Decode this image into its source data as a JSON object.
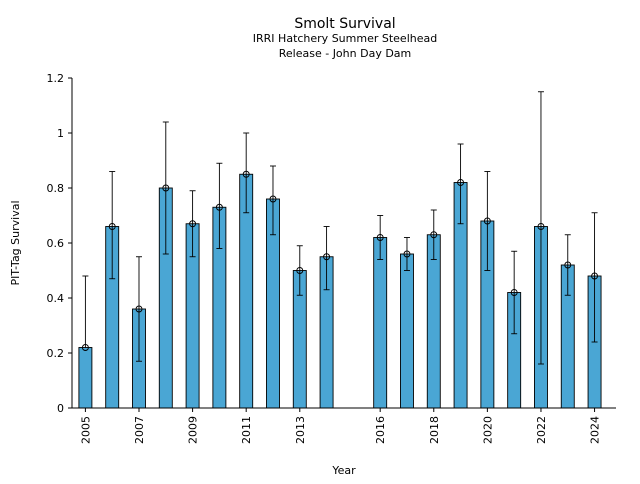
{
  "chart_data": {
    "type": "bar",
    "title": "Smolt Survival",
    "subtitle": [
      "IRRI Hatchery Summer Steelhead",
      "Release - John Day Dam"
    ],
    "xlabel": "Year",
    "ylabel": "PIT-Tag Survival",
    "ylim": [
      0,
      1.2
    ],
    "yticks": [
      "0",
      "0.2",
      "0.4",
      "0.6",
      "0.8",
      "1",
      "1.2"
    ],
    "xticks": [
      "2005",
      "2007",
      "2009",
      "2011",
      "2013",
      "2016",
      "2018",
      "2020",
      "2022",
      "2024"
    ],
    "grid": false,
    "bar_color": "#4aa6d4",
    "edge_color": "#000000",
    "x": [
      2005,
      2006,
      2007,
      2008,
      2009,
      2010,
      2011,
      2012,
      2013,
      2014,
      2016,
      2017,
      2018,
      2019,
      2020,
      2021,
      2022,
      2023,
      2024
    ],
    "values": [
      0.22,
      0.66,
      0.36,
      0.8,
      0.67,
      0.73,
      0.85,
      0.76,
      0.5,
      0.55,
      0.62,
      0.56,
      0.63,
      0.82,
      0.68,
      0.42,
      0.66,
      0.52,
      0.48
    ],
    "error_low": [
      null,
      0.47,
      0.17,
      0.56,
      0.55,
      0.58,
      0.71,
      0.63,
      0.41,
      0.43,
      0.54,
      0.5,
      0.54,
      0.67,
      0.5,
      0.27,
      0.16,
      0.41,
      0.24
    ],
    "error_high": [
      0.48,
      0.86,
      0.55,
      1.04,
      0.79,
      0.89,
      1.0,
      0.88,
      0.59,
      0.66,
      0.7,
      0.62,
      0.72,
      0.96,
      0.86,
      0.57,
      1.15,
      0.63,
      0.71
    ]
  }
}
